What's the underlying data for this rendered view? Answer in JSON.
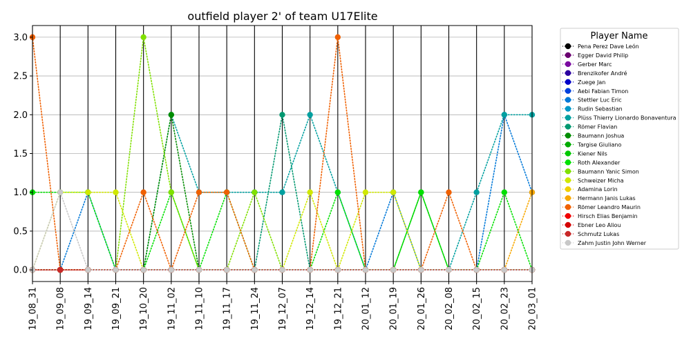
{
  "chart_data": {
    "type": "line",
    "title": "outfield player 2' of team U17Elite",
    "xlabel": "",
    "ylabel": "",
    "ylim": [
      -0.15,
      3.15
    ],
    "yticks": [
      0.0,
      0.5,
      1.0,
      1.5,
      2.0,
      2.5,
      3.0
    ],
    "ytick_labels": [
      "0.0",
      "0.5",
      "1.0",
      "1.5",
      "2.0",
      "2.5",
      "3.0"
    ],
    "grid": true,
    "legend_title": "Player Name",
    "legend_position": "right-outside",
    "categories": [
      "19_08_31",
      "19_09_08",
      "19_09_14",
      "19_09_21",
      "19_10_20",
      "19_11_02",
      "19_11_10",
      "19_11_17",
      "19_11_24",
      "19_12_07",
      "19_12_14",
      "19_12_21",
      "20_01_12",
      "20_01_19",
      "20_01_26",
      "20_02_08",
      "20_02_15",
      "20_02_23",
      "20_03_01"
    ],
    "series": [
      {
        "name": "Pena Perez Dave León",
        "color": "#000000",
        "values": [
          0,
          0,
          0,
          0,
          0,
          0,
          0,
          0,
          0,
          0,
          0,
          0,
          0,
          0,
          0,
          0,
          0,
          0,
          0
        ]
      },
      {
        "name": "Egger David Philip",
        "color": "#6a0070",
        "values": [
          0,
          0,
          0,
          0,
          0,
          0,
          0,
          0,
          0,
          0,
          0,
          0,
          0,
          0,
          0,
          0,
          0,
          0,
          0
        ]
      },
      {
        "name": "Gerber Marc",
        "color": "#7a0aa0",
        "values": [
          0,
          0,
          0,
          0,
          0,
          0,
          0,
          0,
          0,
          0,
          0,
          0,
          0,
          0,
          0,
          0,
          0,
          0,
          0
        ]
      },
      {
        "name": "Brenzikofer André",
        "color": "#2a00a0",
        "values": [
          0,
          0,
          0,
          0,
          0,
          0,
          0,
          0,
          0,
          0,
          0,
          0,
          0,
          0,
          0,
          0,
          0,
          0,
          0
        ]
      },
      {
        "name": "Zuege Jan",
        "color": "#0000c8",
        "values": [
          0,
          0,
          0,
          0,
          0,
          0,
          0,
          0,
          0,
          0,
          0,
          0,
          0,
          0,
          0,
          0,
          0,
          0,
          0
        ]
      },
      {
        "name": "Aebi Fabian Timon",
        "color": "#0040dd",
        "values": [
          0,
          0,
          0,
          0,
          0,
          0,
          0,
          0,
          0,
          0,
          0,
          0,
          0,
          0,
          0,
          0,
          0,
          0,
          0
        ]
      },
      {
        "name": "Stettler Luc Eric",
        "color": "#0078d8",
        "values": [
          0,
          0,
          1,
          0,
          0,
          0,
          0,
          0,
          0,
          0,
          0,
          0,
          0,
          1,
          0,
          0,
          0,
          2,
          1
        ]
      },
      {
        "name": "Rudin Sebastian",
        "color": "#0098c8",
        "values": [
          0,
          0,
          0,
          0,
          0,
          0,
          0,
          0,
          0,
          0,
          0,
          0,
          0,
          0,
          0,
          0,
          0,
          0,
          0
        ]
      },
      {
        "name": "Plüss Thierry Lionardo Bonaventura",
        "color": "#00a0a0",
        "values": [
          0,
          0,
          0,
          0,
          0,
          2,
          1,
          1,
          1,
          1,
          2,
          1,
          0,
          0,
          0,
          0,
          1,
          2,
          2
        ]
      },
      {
        "name": "Römer Flavian",
        "color": "#009870",
        "values": [
          0,
          0,
          0,
          0,
          0,
          0,
          0,
          0,
          0,
          2,
          0,
          0,
          0,
          0,
          0,
          0,
          0,
          0,
          0
        ]
      },
      {
        "name": "Baumann Joshua",
        "color": "#008c00",
        "values": [
          0,
          0,
          0,
          0,
          0,
          2,
          0,
          0,
          0,
          0,
          0,
          0,
          0,
          0,
          0,
          0,
          0,
          0,
          0
        ]
      },
      {
        "name": "Targise Giuliano",
        "color": "#00aa00",
        "values": [
          0,
          0,
          0,
          0,
          0,
          0,
          0,
          0,
          0,
          0,
          0,
          0,
          0,
          0,
          0,
          0,
          0,
          0,
          0
        ]
      },
      {
        "name": "Kiener Nils",
        "color": "#00c800",
        "values": [
          0,
          0,
          0,
          0,
          0,
          0,
          0,
          0,
          0,
          0,
          0,
          0,
          0,
          0,
          1,
          0,
          0,
          0,
          0
        ]
      },
      {
        "name": "Roth Alexander",
        "color": "#00e000",
        "values": [
          1,
          1,
          1,
          0,
          0,
          1,
          0,
          1,
          0,
          0,
          0,
          1,
          0,
          0,
          1,
          0,
          0,
          1,
          0
        ]
      },
      {
        "name": "Baumann Yanic Simon",
        "color": "#80e000",
        "values": [
          0,
          0,
          0,
          0,
          3,
          1,
          0,
          0,
          1,
          0,
          0,
          0,
          0,
          0,
          0,
          0,
          0,
          0,
          0
        ]
      },
      {
        "name": "Schweizer Micha",
        "color": "#d0e800",
        "values": [
          0,
          1,
          1,
          1,
          0,
          0,
          0,
          0,
          0,
          0,
          1,
          0,
          1,
          1,
          0,
          0,
          0,
          0,
          0
        ]
      },
      {
        "name": "Adamina Lorin",
        "color": "#f0d000",
        "values": [
          0,
          0,
          0,
          0,
          0,
          0,
          0,
          0,
          0,
          0,
          0,
          0,
          0,
          0,
          0,
          0,
          0,
          0,
          0
        ]
      },
      {
        "name": "Hermann Janis Lukas",
        "color": "#f8a800",
        "values": [
          0,
          0,
          0,
          0,
          0,
          0,
          0,
          0,
          0,
          0,
          0,
          0,
          0,
          0,
          0,
          0,
          0,
          0,
          1
        ]
      },
      {
        "name": "Römer Leandro Maurin",
        "color": "#f06000",
        "values": [
          3,
          0,
          0,
          0,
          1,
          0,
          1,
          1,
          0,
          0,
          0,
          3,
          0,
          0,
          0,
          1,
          0,
          0,
          0
        ]
      },
      {
        "name": "Hirsch Elias Benjamin",
        "color": "#f00000",
        "values": [
          0,
          0,
          0,
          0,
          0,
          0,
          0,
          0,
          0,
          0,
          0,
          0,
          0,
          0,
          0,
          0,
          0,
          0,
          0
        ]
      },
      {
        "name": "Ebner Leo Aliou",
        "color": "#d40000",
        "values": [
          0,
          0,
          0,
          0,
          0,
          0,
          0,
          0,
          0,
          0,
          0,
          0,
          0,
          0,
          0,
          0,
          0,
          0,
          0
        ]
      },
      {
        "name": "Schmutz Lukas",
        "color": "#c82828",
        "values": [
          0,
          0,
          0,
          0,
          0,
          0,
          0,
          0,
          0,
          0,
          0,
          0,
          0,
          0,
          0,
          0,
          0,
          0,
          0
        ]
      },
      {
        "name": "Zahm Justin John Werner",
        "color": "#c8c8c8",
        "values": [
          0,
          1,
          0,
          0,
          0,
          0,
          0,
          0,
          0,
          0,
          0,
          0,
          0,
          0,
          0,
          0,
          0,
          0,
          0
        ]
      }
    ]
  }
}
